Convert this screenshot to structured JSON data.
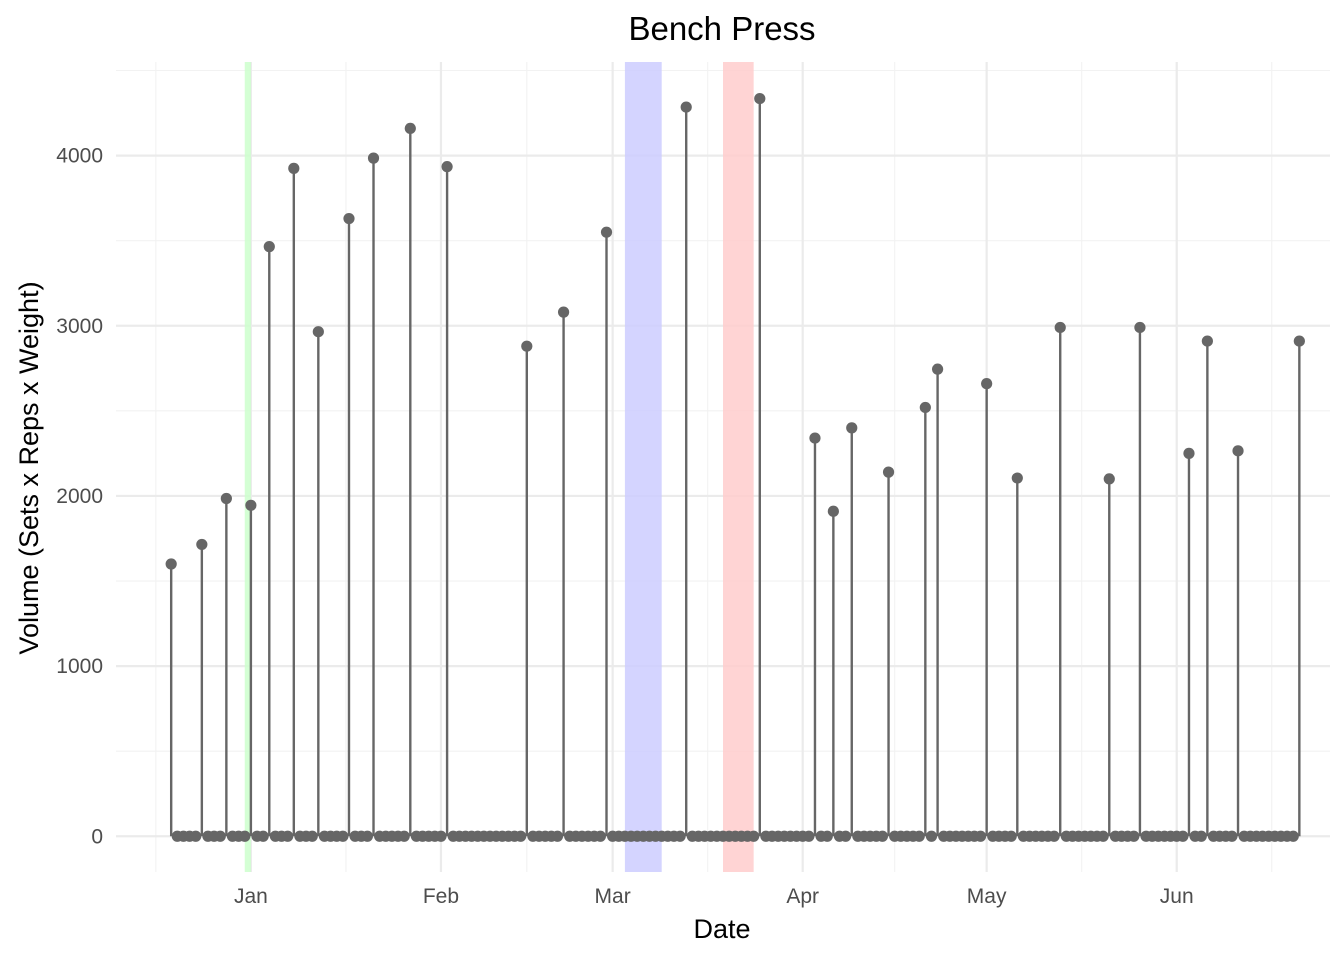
{
  "chart_data": {
    "type": "lollipop",
    "title": "Bench Press",
    "xlabel": "Date",
    "ylabel": "Volume (Sets x Reps x Weight)",
    "x_axis": {
      "type": "date",
      "range": [
        "2021-12-10",
        "2022-06-26"
      ],
      "ticks": [
        {
          "date": "2022-01-01",
          "label": "Jan"
        },
        {
          "date": "2022-02-01",
          "label": "Feb"
        },
        {
          "date": "2022-03-01",
          "label": "Mar"
        },
        {
          "date": "2022-04-01",
          "label": "Apr"
        },
        {
          "date": "2022-05-01",
          "label": "May"
        },
        {
          "date": "2022-06-01",
          "label": "Jun"
        }
      ]
    },
    "y_axis": {
      "range": [
        -210,
        4550
      ],
      "ticks": [
        0,
        1000,
        2000,
        3000,
        4000
      ]
    },
    "grid": true,
    "date_range": [
      "2021-12-19",
      "2022-06-21"
    ],
    "points": [
      {
        "date": "2021-12-19",
        "value": 1600
      },
      {
        "date": "2021-12-24",
        "value": 1715
      },
      {
        "date": "2021-12-28",
        "value": 1985
      },
      {
        "date": "2022-01-01",
        "value": 1945
      },
      {
        "date": "2022-01-04",
        "value": 3465
      },
      {
        "date": "2022-01-08",
        "value": 3925
      },
      {
        "date": "2022-01-12",
        "value": 2965
      },
      {
        "date": "2022-01-17",
        "value": 3630
      },
      {
        "date": "2022-01-21",
        "value": 3985
      },
      {
        "date": "2022-01-27",
        "value": 4160
      },
      {
        "date": "2022-02-02",
        "value": 3935
      },
      {
        "date": "2022-02-15",
        "value": 2880
      },
      {
        "date": "2022-02-21",
        "value": 3080
      },
      {
        "date": "2022-02-28",
        "value": 3550
      },
      {
        "date": "2022-03-13",
        "value": 4285
      },
      {
        "date": "2022-03-25",
        "value": 4335
      },
      {
        "date": "2022-04-03",
        "value": 2340
      },
      {
        "date": "2022-04-06",
        "value": 1910
      },
      {
        "date": "2022-04-09",
        "value": 2400
      },
      {
        "date": "2022-04-15",
        "value": 2140
      },
      {
        "date": "2022-04-21",
        "value": 2520
      },
      {
        "date": "2022-04-23",
        "value": 2745
      },
      {
        "date": "2022-05-01",
        "value": 2660
      },
      {
        "date": "2022-05-06",
        "value": 2105
      },
      {
        "date": "2022-05-13",
        "value": 2990
      },
      {
        "date": "2022-05-21",
        "value": 2100
      },
      {
        "date": "2022-05-26",
        "value": 2990
      },
      {
        "date": "2022-06-03",
        "value": 2250
      },
      {
        "date": "2022-06-06",
        "value": 2910
      },
      {
        "date": "2022-06-11",
        "value": 2265
      },
      {
        "date": "2022-06-21",
        "value": 2910
      }
    ],
    "highlights": [
      {
        "start": "2021-12-31",
        "end": "2022-01-01",
        "color": "#ccffcc"
      },
      {
        "start": "2022-03-03",
        "end": "2022-03-09",
        "color": "#ccccff"
      },
      {
        "start": "2022-03-19",
        "end": "2022-03-24",
        "color": "#ffcccc"
      }
    ],
    "colors": {
      "stem": "#666666",
      "point": "#666666",
      "grid_major": "#ebebeb",
      "grid_minor": "#f2f2f2"
    }
  }
}
